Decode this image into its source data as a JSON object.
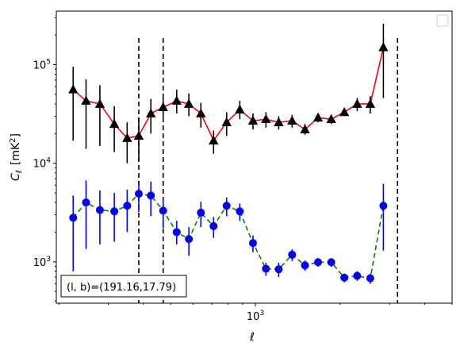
{
  "chart_data": {
    "type": "line",
    "x_scale": "log",
    "y_scale": "log",
    "xlim": [
      196,
      5000
    ],
    "ylim": [
      380,
      350000
    ],
    "xlabel": "ℓ",
    "ylabel_text": "C",
    "ylabel_sub": "ℓ",
    "ylabel_unit": "[mK",
    "ylabel_unit_sup": "2",
    "ylabel_unit_close": "]",
    "x_tick_labels": [
      {
        "value": 1000,
        "base": "10",
        "exp": "3"
      }
    ],
    "y_tick_labels": [
      {
        "value": 1000,
        "base": "10",
        "exp": "3"
      },
      {
        "value": 10000,
        "base": "10",
        "exp": "4"
      },
      {
        "value": 100000,
        "base": "10",
        "exp": "5"
      }
    ],
    "vlines": [
      385,
      470,
      3200
    ],
    "annotation": "(l, b)=(191.16,17.79)",
    "legend": "top-right (empty)",
    "series": [
      {
        "color": "#ff0000",
        "marker": "triangle",
        "marker_color": "#000000",
        "errbar_color": "#000000",
        "linestyle": "solid",
        "points": [
          {
            "x": 225,
            "y": 56000,
            "lo": 17000,
            "hi": 95000
          },
          {
            "x": 250,
            "y": 43000,
            "lo": 14000,
            "hi": 71000
          },
          {
            "x": 280,
            "y": 40000,
            "lo": 15000,
            "hi": 62000
          },
          {
            "x": 315,
            "y": 25000,
            "lo": 13000,
            "hi": 38000
          },
          {
            "x": 350,
            "y": 18000,
            "lo": 10000,
            "hi": 26000
          },
          {
            "x": 385,
            "y": 19000,
            "lo": 10500,
            "hi": 29000
          },
          {
            "x": 425,
            "y": 32000,
            "lo": 20000,
            "hi": 45000
          },
          {
            "x": 470,
            "y": 37000,
            "lo": 29000,
            "hi": 46000
          },
          {
            "x": 525,
            "y": 43000,
            "lo": 32000,
            "hi": 56000
          },
          {
            "x": 580,
            "y": 40000,
            "lo": 30000,
            "hi": 51000
          },
          {
            "x": 640,
            "y": 32000,
            "lo": 23000,
            "hi": 41000
          },
          {
            "x": 710,
            "y": 17000,
            "lo": 12500,
            "hi": 21500
          },
          {
            "x": 790,
            "y": 26000,
            "lo": 19000,
            "hi": 33000
          },
          {
            "x": 880,
            "y": 35000,
            "lo": 28000,
            "hi": 43000
          },
          {
            "x": 980,
            "y": 27000,
            "lo": 22000,
            "hi": 32000
          },
          {
            "x": 1090,
            "y": 28000,
            "lo": 23000,
            "hi": 33000
          },
          {
            "x": 1210,
            "y": 26000,
            "lo": 22000,
            "hi": 30000
          },
          {
            "x": 1350,
            "y": 27000,
            "lo": 23000,
            "hi": 31000
          },
          {
            "x": 1500,
            "y": 22000,
            "lo": 19500,
            "hi": 25000
          },
          {
            "x": 1670,
            "y": 29000,
            "lo": 26000,
            "hi": 32000
          },
          {
            "x": 1860,
            "y": 28000,
            "lo": 25000,
            "hi": 31000
          },
          {
            "x": 2070,
            "y": 33000,
            "lo": 30000,
            "hi": 36000
          },
          {
            "x": 2300,
            "y": 40000,
            "lo": 34000,
            "hi": 46000
          },
          {
            "x": 2560,
            "y": 40000,
            "lo": 32000,
            "hi": 48000
          },
          {
            "x": 2850,
            "y": 150000,
            "lo": 46000,
            "hi": 260000
          }
        ]
      },
      {
        "color": "#008000",
        "marker": "circle",
        "marker_color": "#0000ff",
        "errbar_color": "#0000ff",
        "linestyle": "dashed",
        "points": [
          {
            "x": 225,
            "y": 2800,
            "lo": 800,
            "hi": 4700
          },
          {
            "x": 250,
            "y": 4000,
            "lo": 1350,
            "hi": 6700
          },
          {
            "x": 280,
            "y": 3350,
            "lo": 1500,
            "hi": 5300
          },
          {
            "x": 315,
            "y": 3250,
            "lo": 1600,
            "hi": 5000
          },
          {
            "x": 350,
            "y": 3700,
            "lo": 2000,
            "hi": 5400
          },
          {
            "x": 385,
            "y": 4900,
            "lo": 3200,
            "hi": 6600
          },
          {
            "x": 425,
            "y": 4700,
            "lo": 2900,
            "hi": 6500
          },
          {
            "x": 470,
            "y": 3300,
            "lo": 2200,
            "hi": 4400
          },
          {
            "x": 525,
            "y": 2000,
            "lo": 1500,
            "hi": 2600
          },
          {
            "x": 580,
            "y": 1700,
            "lo": 1150,
            "hi": 2250
          },
          {
            "x": 640,
            "y": 3150,
            "lo": 2250,
            "hi": 4050
          },
          {
            "x": 710,
            "y": 2300,
            "lo": 1750,
            "hi": 2850
          },
          {
            "x": 790,
            "y": 3700,
            "lo": 2900,
            "hi": 4500
          },
          {
            "x": 880,
            "y": 3250,
            "lo": 2600,
            "hi": 3900
          },
          {
            "x": 980,
            "y": 1550,
            "lo": 1250,
            "hi": 1850
          },
          {
            "x": 1090,
            "y": 850,
            "lo": 720,
            "hi": 980
          },
          {
            "x": 1210,
            "y": 840,
            "lo": 700,
            "hi": 980
          },
          {
            "x": 1350,
            "y": 1180,
            "lo": 1020,
            "hi": 1340
          },
          {
            "x": 1500,
            "y": 920,
            "lo": 810,
            "hi": 1030
          },
          {
            "x": 1670,
            "y": 990,
            "lo": 890,
            "hi": 1090
          },
          {
            "x": 1860,
            "y": 990,
            "lo": 890,
            "hi": 1090
          },
          {
            "x": 2070,
            "y": 690,
            "lo": 620,
            "hi": 760
          },
          {
            "x": 2300,
            "y": 720,
            "lo": 640,
            "hi": 800
          },
          {
            "x": 2560,
            "y": 680,
            "lo": 600,
            "hi": 760
          },
          {
            "x": 2850,
            "y": 3700,
            "lo": 1300,
            "hi": 6200
          }
        ]
      }
    ]
  }
}
